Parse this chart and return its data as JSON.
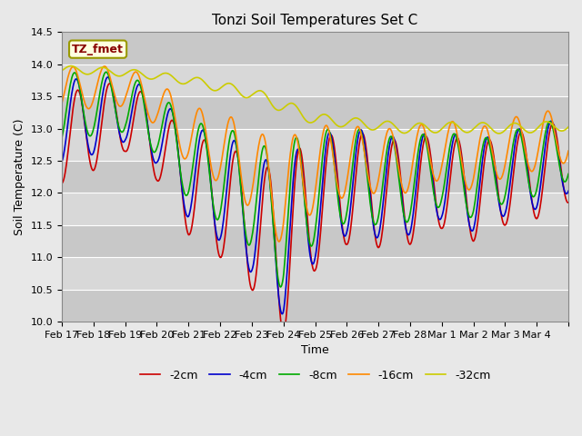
{
  "title": "Tonzi Soil Temperatures Set C",
  "xlabel": "Time",
  "ylabel": "Soil Temperature (C)",
  "ylim": [
    10.0,
    14.5
  ],
  "annotation": "TZ_fmet",
  "legend_labels": [
    "-2cm",
    "-4cm",
    "-8cm",
    "-16cm",
    "-32cm"
  ],
  "legend_colors": [
    "#cc0000",
    "#0000cc",
    "#00aa00",
    "#ff8800",
    "#cccc00"
  ],
  "xtick_labels": [
    "Feb 17",
    "Feb 18",
    "Feb 19",
    "Feb 20",
    "Feb 21",
    "Feb 22",
    "Feb 23",
    "Feb 24",
    "Feb 25",
    "Feb 26",
    "Feb 27",
    "Feb 28",
    "Mar 1",
    "Mar 2",
    "Mar 3",
    "Mar 4"
  ],
  "plot_bg_color": "#d8d8d8",
  "fig_bg_color": "#e8e8e8",
  "title_fontsize": 11,
  "axis_fontsize": 9,
  "tick_fontsize": 8,
  "legend_fontsize": 9,
  "line_width": 1.2
}
